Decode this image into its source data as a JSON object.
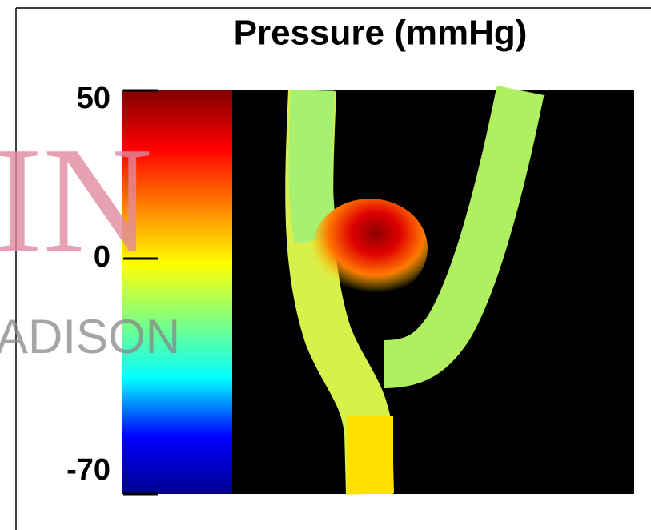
{
  "chart_data": {
    "type": "heatmap",
    "title": "Pressure (mmHg)",
    "colorbar": {
      "ylim": [
        -70,
        50
      ],
      "yticks": [
        -70,
        0,
        50
      ],
      "colormap": [
        "#00008f",
        "#0000ff",
        "#00ffff",
        "#80ff80",
        "#ffff00",
        "#ff8000",
        "#ff0000",
        "#800000"
      ]
    },
    "watermark": {
      "large": "IN",
      "small": "ADISON"
    }
  }
}
